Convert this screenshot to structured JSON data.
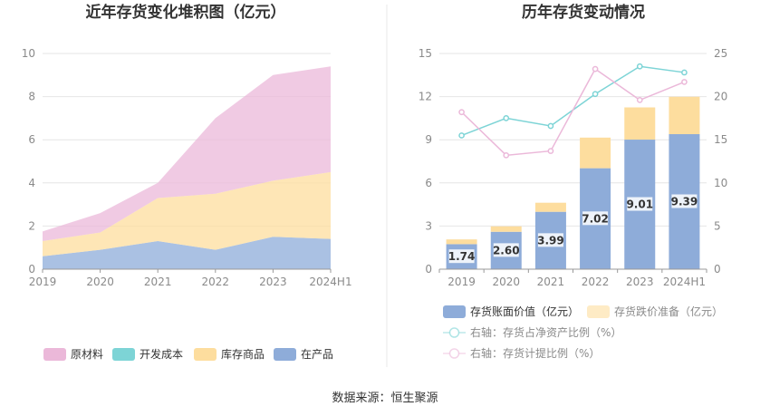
{
  "source_text": "数据来源：恒生聚源",
  "chart_data": [
    {
      "type": "area",
      "stacked": true,
      "title": "近年存货变化堆积图（亿元）",
      "categories": [
        "2019",
        "2020",
        "2021",
        "2022",
        "2023",
        "2024H1"
      ],
      "ylim": [
        0,
        10
      ],
      "yticks": [
        "0",
        "2",
        "4",
        "6",
        "8",
        "10"
      ],
      "grid": true,
      "legend_position": "bottom",
      "series": [
        {
          "name": "在产品",
          "color": "#8eacd9",
          "values": [
            0.6,
            0.9,
            1.3,
            0.9,
            1.5,
            1.4
          ]
        },
        {
          "name": "库存商品",
          "color": "#fddd9e",
          "values": [
            0.7,
            0.8,
            2.0,
            2.6,
            2.6,
            3.1
          ]
        },
        {
          "name": "开发成本",
          "color": "#7dd4d6",
          "values": [
            0,
            0,
            0,
            0,
            0,
            0
          ]
        },
        {
          "name": "原材料",
          "color": "#ebb8d9",
          "values": [
            0.45,
            0.9,
            0.7,
            3.5,
            4.9,
            4.9
          ]
        }
      ],
      "legend_order": [
        "原材料",
        "开发成本",
        "库存商品",
        "在产品"
      ]
    },
    {
      "type": "bar",
      "stacked": true,
      "title": "历年存货变动情况",
      "categories": [
        "2019",
        "2020",
        "2021",
        "2022",
        "2023",
        "2024H1"
      ],
      "ylim": [
        0,
        15
      ],
      "yticks": [
        "0",
        "3",
        "6",
        "9",
        "12",
        "15"
      ],
      "y2lim": [
        0,
        25
      ],
      "y2ticks": [
        "0",
        "5",
        "10",
        "15",
        "20",
        "25"
      ],
      "grid": true,
      "legend_position": "bottom",
      "series": [
        {
          "name": "存货账面价值（亿元）",
          "color": "#8eacd9",
          "axis": "left",
          "values": [
            1.74,
            2.6,
            3.99,
            7.02,
            9.01,
            9.39
          ],
          "labels": [
            "1.74",
            "2.60",
            "3.99",
            "7.02",
            "9.01",
            "9.39"
          ]
        },
        {
          "name": "存货跌价准备（亿元）",
          "color": "#fddd9e",
          "axis": "left",
          "values": [
            0.33,
            0.38,
            0.63,
            2.13,
            2.24,
            2.6
          ]
        }
      ],
      "line_series": [
        {
          "name": "右轴：存货占净资产比例（%）",
          "color": "#7dd4d6",
          "axis": "right",
          "values": [
            15.5,
            17.5,
            16.6,
            20.3,
            23.5,
            22.8
          ]
        },
        {
          "name": "右轴：存货计提比例（%）",
          "color": "#ebb8d9",
          "axis": "right",
          "values": [
            18.2,
            13.2,
            13.7,
            23.2,
            19.6,
            21.7
          ]
        }
      ]
    }
  ]
}
